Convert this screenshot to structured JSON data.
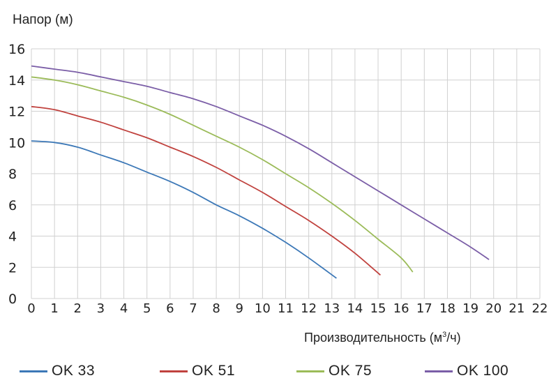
{
  "chart_data": {
    "type": "line",
    "ylabel": "Напор (м)",
    "xlabel_prefix": "Производительность (м",
    "xlabel_sup": "3",
    "xlabel_suffix": "/ч)",
    "xlim": [
      0,
      22
    ],
    "ylim": [
      0,
      16
    ],
    "x_ticks": [
      0,
      1,
      2,
      3,
      4,
      5,
      6,
      7,
      8,
      9,
      10,
      11,
      12,
      13,
      14,
      15,
      16,
      17,
      18,
      19,
      20,
      21,
      22
    ],
    "y_ticks": [
      0,
      2,
      4,
      6,
      8,
      10,
      12,
      14,
      16
    ],
    "grid": true,
    "legend_position": "bottom",
    "series": [
      {
        "name": "OK 33",
        "color": "#3c78b7",
        "points": [
          [
            0,
            10.1
          ],
          [
            1,
            10
          ],
          [
            2,
            9.7
          ],
          [
            3,
            9.2
          ],
          [
            4,
            8.7
          ],
          [
            5,
            8.1
          ],
          [
            6,
            7.5
          ],
          [
            7,
            6.8
          ],
          [
            8,
            6
          ],
          [
            9,
            5.3
          ],
          [
            10,
            4.5
          ],
          [
            11,
            3.6
          ],
          [
            12,
            2.6
          ],
          [
            13.2,
            1.3
          ]
        ]
      },
      {
        "name": "OK 51",
        "color": "#c0423e",
        "points": [
          [
            0,
            12.3
          ],
          [
            1,
            12.1
          ],
          [
            2,
            11.7
          ],
          [
            3,
            11.3
          ],
          [
            4,
            10.8
          ],
          [
            5,
            10.3
          ],
          [
            6,
            9.7
          ],
          [
            7,
            9.1
          ],
          [
            8,
            8.4
          ],
          [
            9,
            7.6
          ],
          [
            10,
            6.8
          ],
          [
            11,
            5.9
          ],
          [
            12,
            5
          ],
          [
            13,
            4
          ],
          [
            14,
            2.9
          ],
          [
            15.1,
            1.5
          ]
        ]
      },
      {
        "name": "OK 75",
        "color": "#9bbb59",
        "points": [
          [
            0,
            14.2
          ],
          [
            1,
            14
          ],
          [
            2,
            13.7
          ],
          [
            3,
            13.3
          ],
          [
            4,
            12.9
          ],
          [
            5,
            12.4
          ],
          [
            6,
            11.8
          ],
          [
            7,
            11.1
          ],
          [
            8,
            10.4
          ],
          [
            9,
            9.7
          ],
          [
            10,
            8.9
          ],
          [
            11,
            8
          ],
          [
            12,
            7.1
          ],
          [
            13,
            6.1
          ],
          [
            14,
            5
          ],
          [
            15,
            3.8
          ],
          [
            16,
            2.6
          ],
          [
            16.5,
            1.7
          ]
        ]
      },
      {
        "name": "OK 100",
        "color": "#7b5ea7",
        "points": [
          [
            0,
            14.9
          ],
          [
            1,
            14.7
          ],
          [
            2,
            14.5
          ],
          [
            3,
            14.2
          ],
          [
            4,
            13.9
          ],
          [
            5,
            13.6
          ],
          [
            6,
            13.2
          ],
          [
            7,
            12.8
          ],
          [
            8,
            12.3
          ],
          [
            9,
            11.7
          ],
          [
            10,
            11.1
          ],
          [
            11,
            10.4
          ],
          [
            12,
            9.6
          ],
          [
            13,
            8.7
          ],
          [
            14,
            7.8
          ],
          [
            15,
            6.9
          ],
          [
            16,
            6
          ],
          [
            17,
            5.1
          ],
          [
            18,
            4.2
          ],
          [
            19,
            3.3
          ],
          [
            19.8,
            2.5
          ]
        ]
      }
    ]
  }
}
